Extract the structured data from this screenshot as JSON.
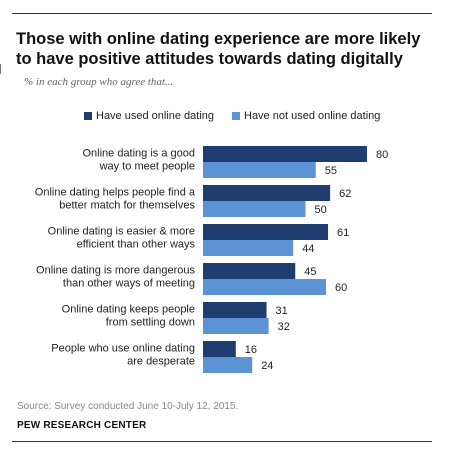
{
  "title": "Those with online dating experience are more likely to have positive attitudes towards dating digitally",
  "subtitle": "% in each group who agree that...",
  "source": "Source: Survey conducted June 10-July 12, 2015.",
  "org": "PEW RESEARCH CENTER",
  "colors": {
    "used": "#1f3d6e",
    "not_used": "#5b93d4"
  },
  "chart_data": {
    "type": "bar",
    "orientation": "horizontal",
    "categories": [
      [
        "Online dating is a good",
        "way to meet people"
      ],
      [
        "Online dating helps people find a",
        "better match for themselves"
      ],
      [
        "Online dating is easier & more",
        "efficient than other ways"
      ],
      [
        "Online dating is more dangerous",
        "than other ways of meeting"
      ],
      [
        "Online dating keeps people",
        "from settling down"
      ],
      [
        "People who use online dating",
        "are desperate"
      ]
    ],
    "series": [
      {
        "name": "Have used online dating",
        "values": [
          80,
          62,
          61,
          45,
          31,
          16
        ]
      },
      {
        "name": "Have not used online dating",
        "values": [
          55,
          50,
          44,
          60,
          32,
          24
        ]
      }
    ],
    "xlim": [
      0,
      100
    ],
    "legend": "top",
    "grid": false
  }
}
